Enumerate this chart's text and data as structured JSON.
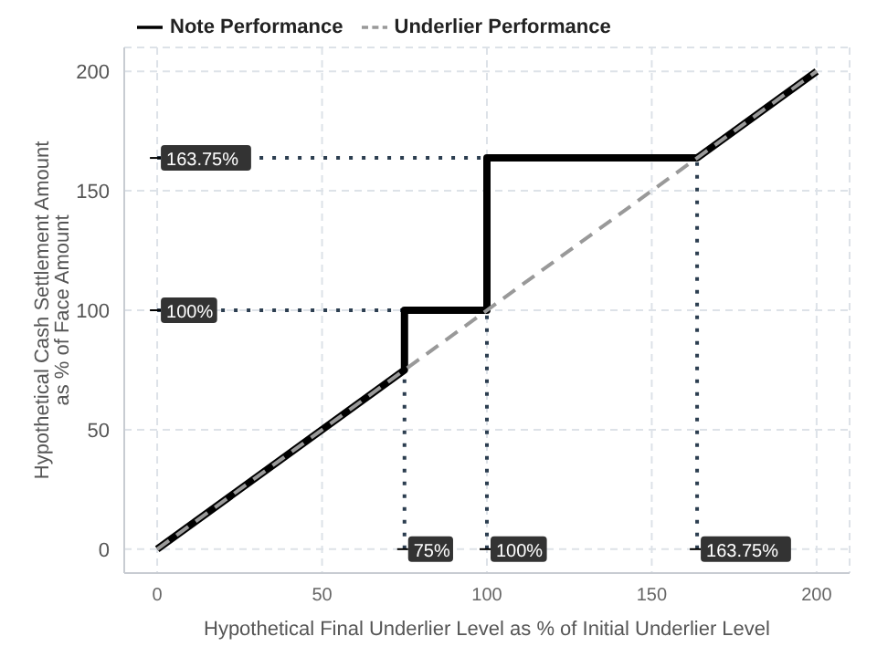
{
  "chart_data": {
    "type": "line",
    "xlabel": "Hypothetical Final Underlier Level as % of Initial Underlier Level",
    "ylabel": "Hypothetical Cash Settlement Amount as % of Face Amount",
    "series": [
      {
        "name": "Note Performance",
        "color": "#000000",
        "line_style": "solid",
        "x": [
          0,
          75,
          75,
          100,
          100,
          163.75,
          200
        ],
        "values": [
          0,
          75,
          100,
          100,
          163.75,
          163.75,
          200
        ]
      },
      {
        "name": "Underlier Performance",
        "color": "#999999",
        "line_style": "dashed",
        "x": [
          0,
          200
        ],
        "values": [
          0,
          200
        ]
      }
    ],
    "xlim": [
      -10,
      210
    ],
    "xticks": [
      0,
      50,
      100,
      150,
      200
    ],
    "ylim": [
      -10,
      210
    ],
    "yticks": [
      0,
      50,
      100,
      150,
      200
    ],
    "ref_lines": [
      {
        "axis": "y",
        "value": 100,
        "label": "100%",
        "color": "#2c3e50",
        "line_style": "dotted"
      },
      {
        "axis": "y",
        "value": 163.75,
        "label": "163.75%",
        "color": "#2c3e50",
        "line_style": "dotted"
      },
      {
        "axis": "x",
        "value": 75,
        "label": "75%",
        "color": "#2c3e50",
        "line_style": "dotted"
      },
      {
        "axis": "x",
        "value": 100,
        "label": "100%",
        "color": "#2c3e50",
        "line_style": "dotted"
      },
      {
        "axis": "x",
        "value": 163.75,
        "label": "163.75%",
        "color": "#2c3e50",
        "line_style": "dotted"
      }
    ],
    "grid": true,
    "legend": "top",
    "marker": "none"
  }
}
